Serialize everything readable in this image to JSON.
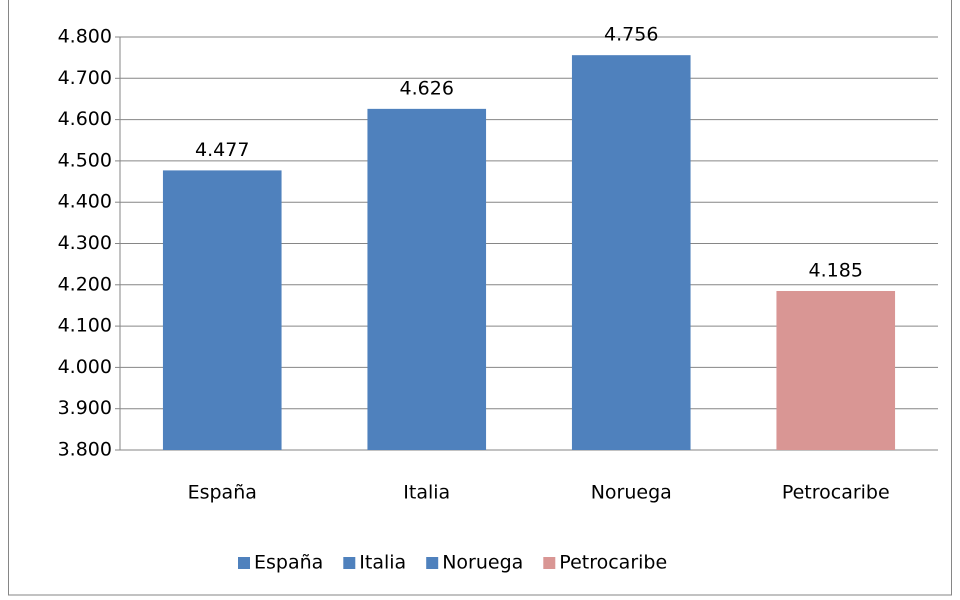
{
  "chart_data": {
    "type": "bar",
    "categories": [
      "España",
      "Italia",
      "Noruega",
      "Petrocaribe"
    ],
    "values": [
      4477,
      4626,
      4756,
      4185
    ],
    "value_labels": [
      "4.477",
      "4.626",
      "4.756",
      "4.185"
    ],
    "colors": [
      "#4f81bd",
      "#4f81bd",
      "#4f81bd",
      "#d99694"
    ],
    "ylim": [
      3800,
      4800
    ],
    "yticks": [
      {
        "value": 3800,
        "label": "3.800"
      },
      {
        "value": 3900,
        "label": "3.900"
      },
      {
        "value": 4000,
        "label": "4.000"
      },
      {
        "value": 4100,
        "label": "4.100"
      },
      {
        "value": 4200,
        "label": "4.200"
      },
      {
        "value": 4300,
        "label": "4.300"
      },
      {
        "value": 4400,
        "label": "4.400"
      },
      {
        "value": 4500,
        "label": "4.500"
      },
      {
        "value": 4600,
        "label": "4.600"
      },
      {
        "value": 4700,
        "label": "4.700"
      },
      {
        "value": 4800,
        "label": "4.800"
      }
    ],
    "grid": true,
    "legend": "bottom"
  }
}
